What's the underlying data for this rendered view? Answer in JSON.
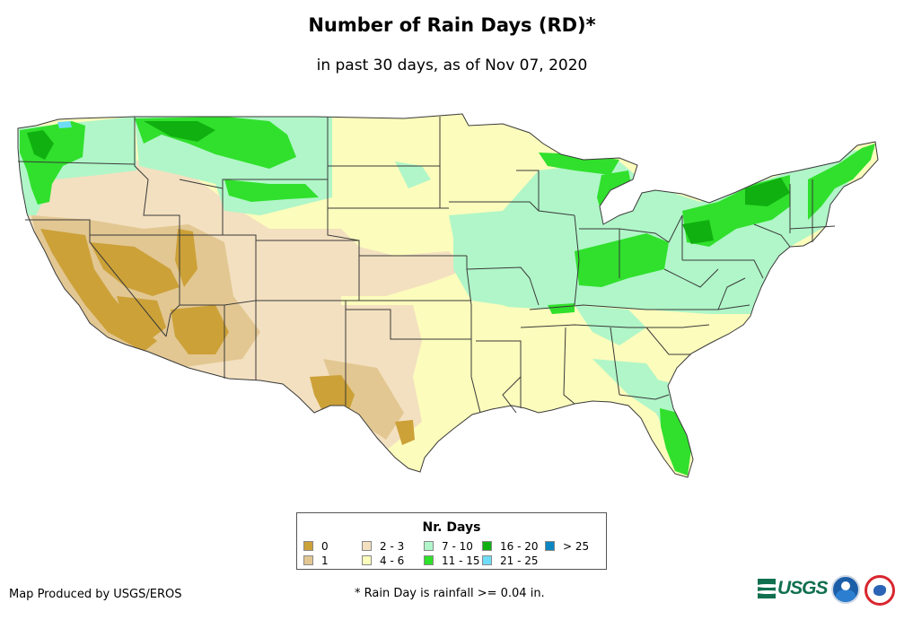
{
  "title": "Number of Rain Days (RD)*",
  "subtitle": "in past 30 days, as of Nov 07, 2020",
  "legend": {
    "title": "Nr. Days",
    "items": [
      {
        "label": "0",
        "color": "#cca138"
      },
      {
        "label": "1",
        "color": "#e2c792"
      },
      {
        "label": "2 - 3",
        "color": "#f3e0c0"
      },
      {
        "label": "4 - 6",
        "color": "#fcfcbc"
      },
      {
        "label": "7 - 10",
        "color": "#b0f6c8"
      },
      {
        "label": "11 - 15",
        "color": "#30e02c"
      },
      {
        "label": "16 - 20",
        "color": "#10b010"
      },
      {
        "label": "21 - 25",
        "color": "#6edcf7"
      },
      {
        "label": "> 25",
        "color": "#0a86c2"
      }
    ]
  },
  "footer": {
    "credit": "Map Produced by USGS/EROS",
    "footnote": "* Rain Day is rainfall >= 0.04 in."
  },
  "logos": {
    "usgs": {
      "text": "USGS",
      "name": "usgs-logo"
    },
    "noaa": {
      "name": "noaa-logo"
    },
    "nws": {
      "name": "nws-logo"
    }
  },
  "colors": {
    "border": "#3a3a3a",
    "water": "#ffffff"
  }
}
